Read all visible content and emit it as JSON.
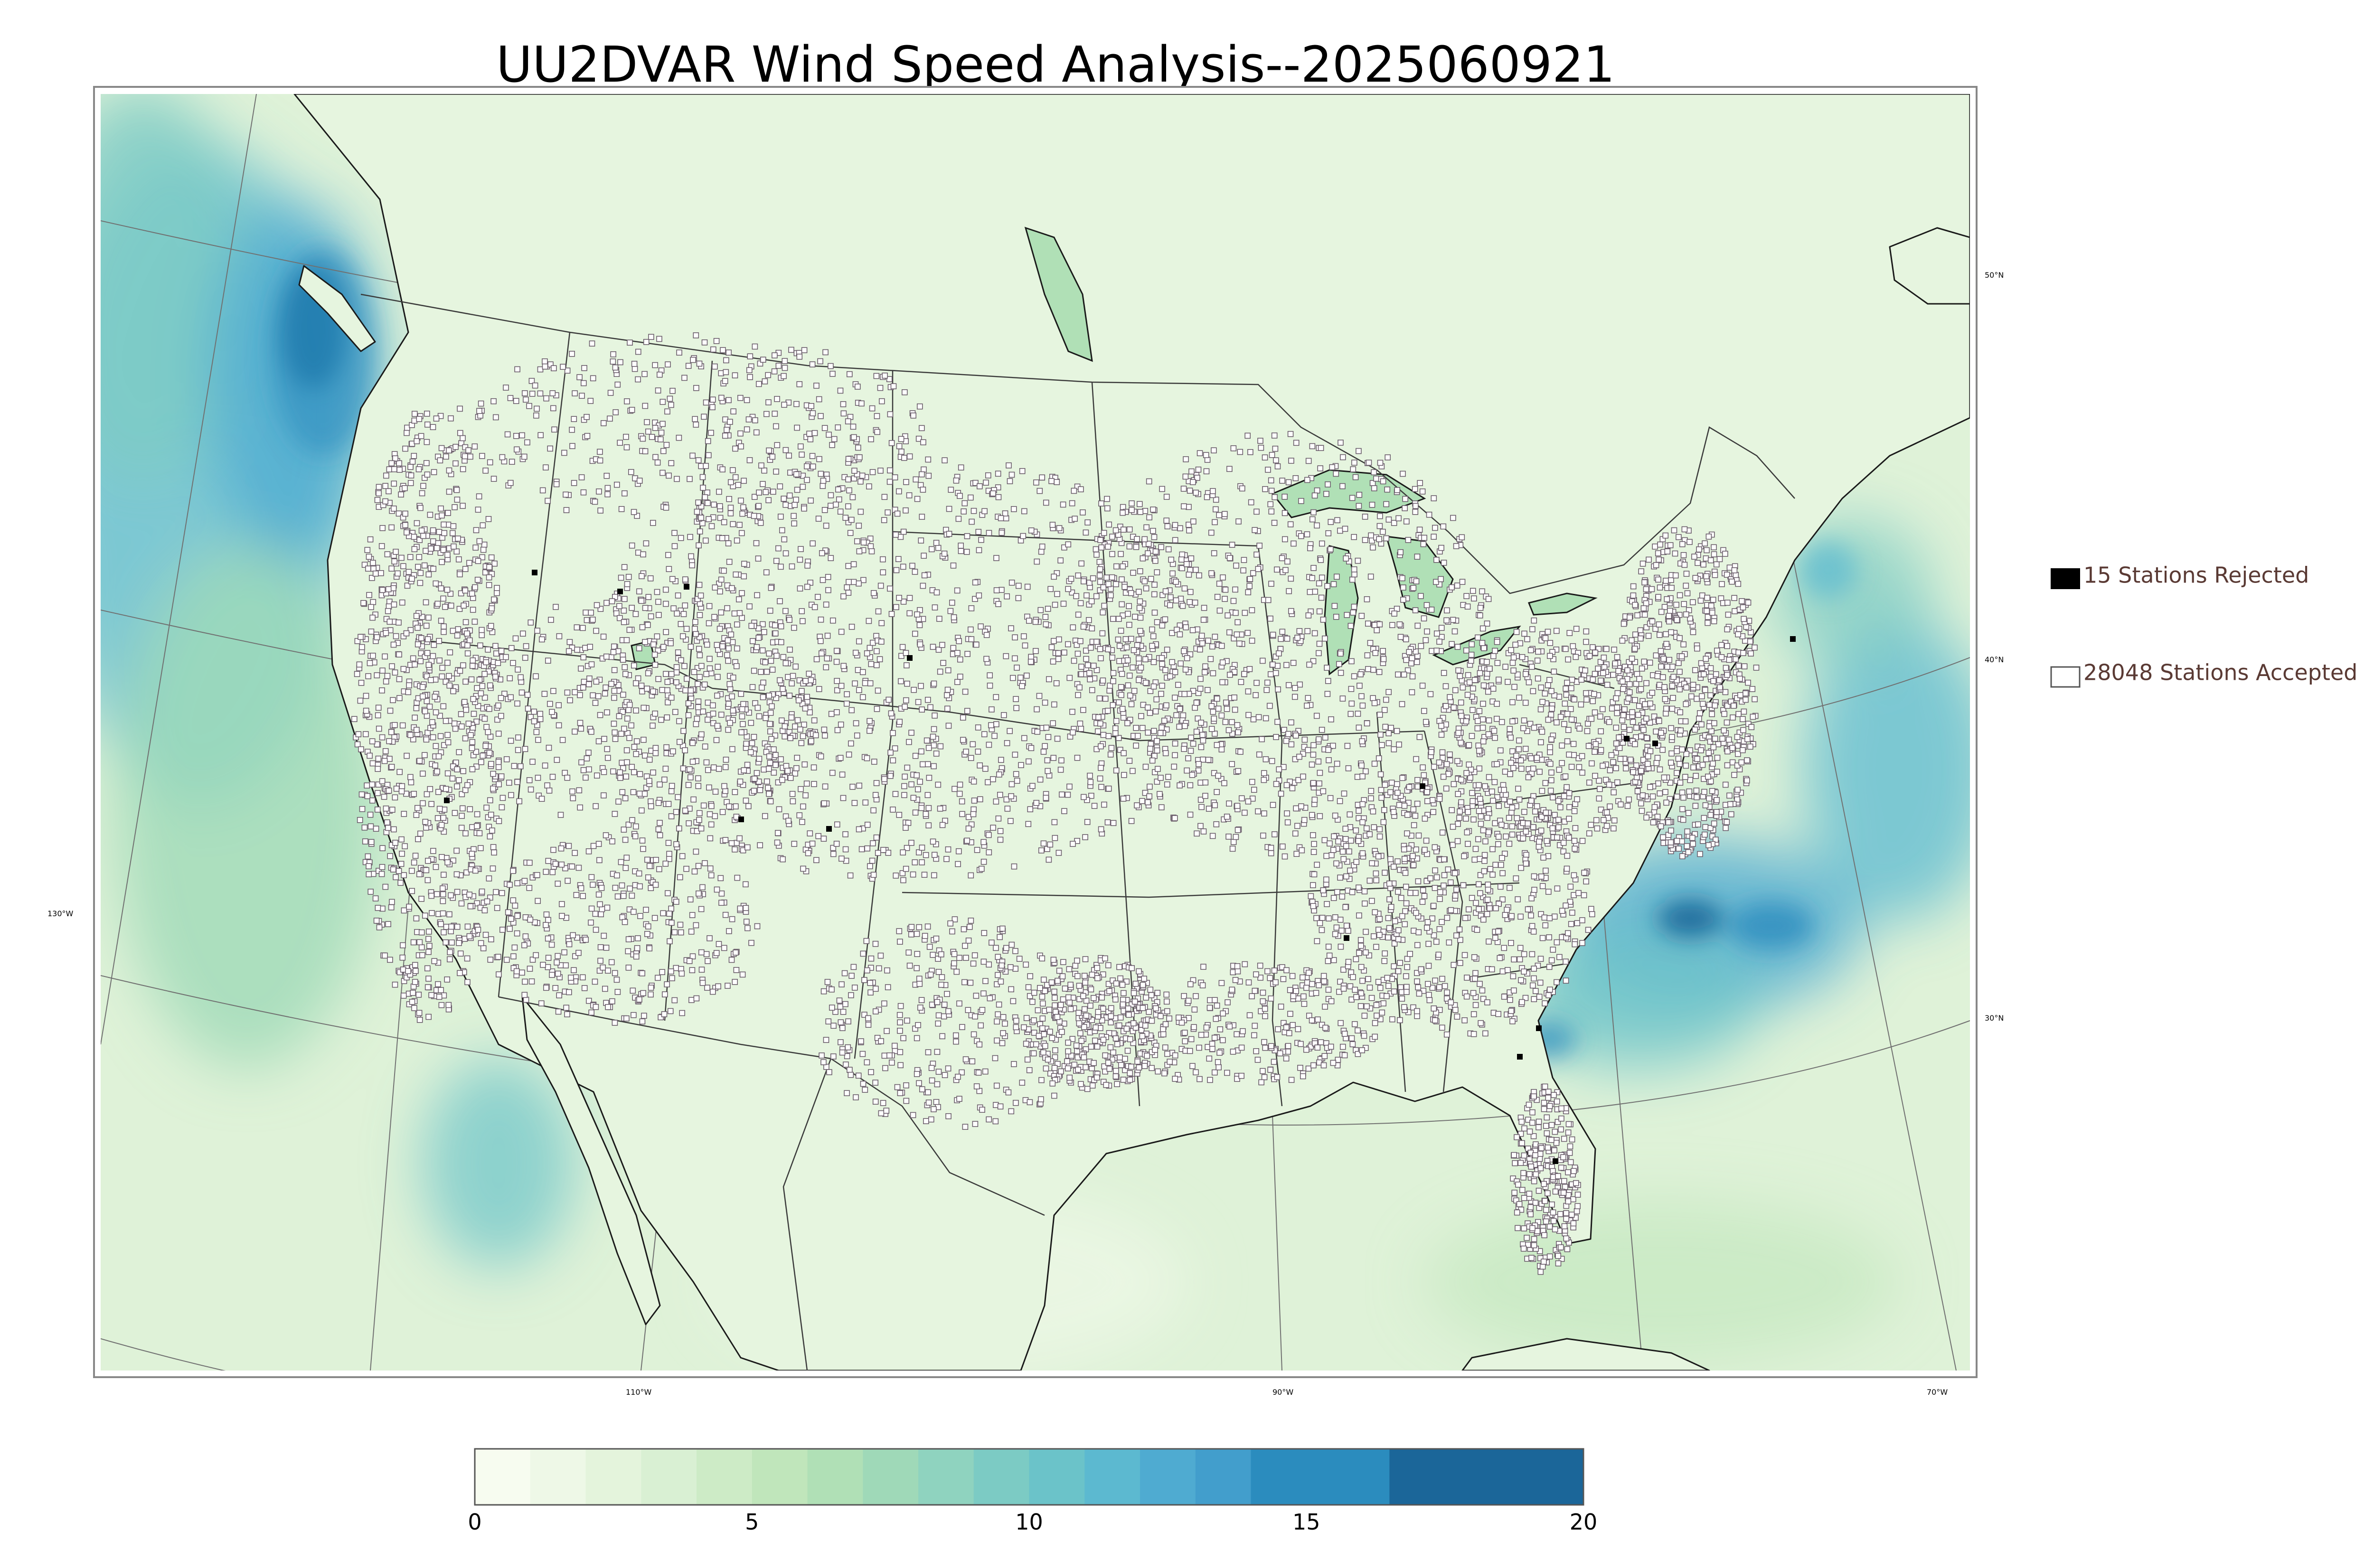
{
  "title": "UU2DVAR Wind Speed Analysis--2025060921",
  "legend": {
    "rejected": "15 Stations Rejected",
    "accepted": "28048 Stations Accepted",
    "text_color": "#5a3a34"
  },
  "graticule": {
    "latitude_labels": [
      "50°N",
      "40°N",
      "30°N"
    ],
    "longitude_labels": [
      "130°W",
      "110°W",
      "90°W",
      "70°W"
    ]
  },
  "colorbar": {
    "min": 0,
    "max": 20,
    "tick_labels": [
      "0",
      "5",
      "10",
      "15",
      "20"
    ],
    "bins": [
      {
        "from": 0,
        "to": 1,
        "color": "#f7fcf0"
      },
      {
        "from": 1,
        "to": 2,
        "color": "#eef8e7"
      },
      {
        "from": 2,
        "to": 3,
        "color": "#e4f4dc"
      },
      {
        "from": 3,
        "to": 4,
        "color": "#d9f0d3"
      },
      {
        "from": 4,
        "to": 5,
        "color": "#cdebc6"
      },
      {
        "from": 5,
        "to": 6,
        "color": "#c0e6bb"
      },
      {
        "from": 6,
        "to": 7,
        "color": "#b0e0b6"
      },
      {
        "from": 7,
        "to": 8,
        "color": "#9fd9b8"
      },
      {
        "from": 8,
        "to": 9,
        "color": "#8fd3bf"
      },
      {
        "from": 9,
        "to": 10,
        "color": "#7ccbc4"
      },
      {
        "from": 10,
        "to": 11,
        "color": "#6bc3c9"
      },
      {
        "from": 11,
        "to": 12,
        "color": "#5cb9d0"
      },
      {
        "from": 12,
        "to": 13,
        "color": "#4fabd1"
      },
      {
        "from": 13,
        "to": 14,
        "color": "#429ecc"
      },
      {
        "from": 14,
        "to": 16.5,
        "color": "#2b8cbe"
      },
      {
        "from": 16.5,
        "to": 20,
        "color": "#1b6699"
      }
    ]
  },
  "colors": {
    "ocean_base": "#dff2d8",
    "land_base": "#e8f6e2",
    "coast": "#1a1a1a",
    "border": "#333333",
    "station_accepted": "#ffffff",
    "station_rejected": "#000000",
    "station_edge": "#6a5d6a"
  }
}
